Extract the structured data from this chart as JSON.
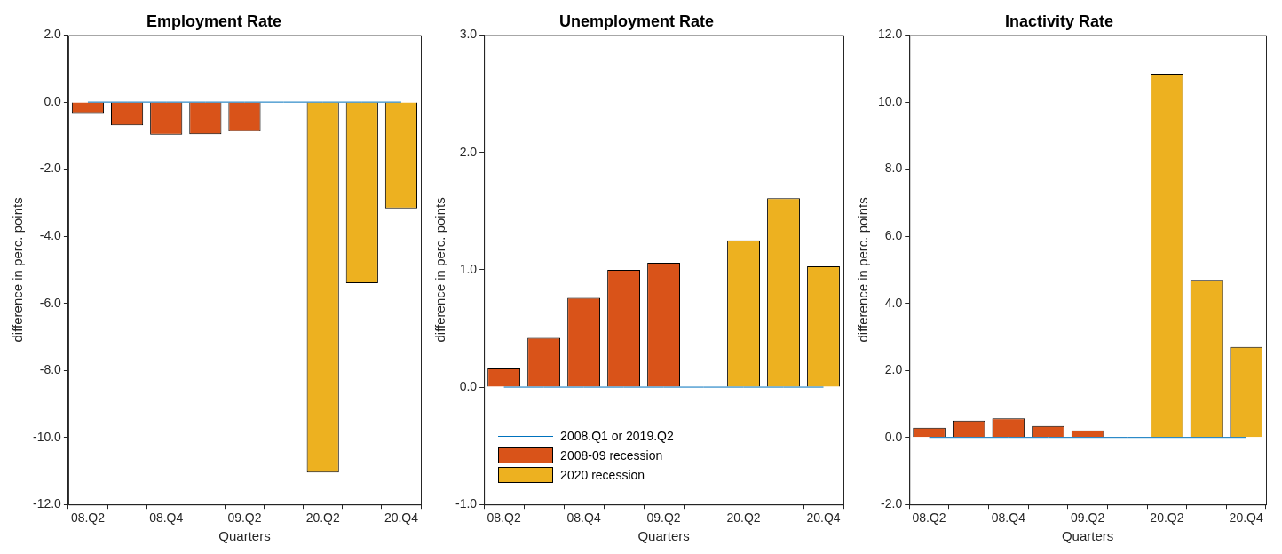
{
  "chart_data": [
    {
      "type": "bar",
      "title": "Employment Rate",
      "xlabel": "Quarters",
      "ylabel": "difference in perc. points",
      "categories": [
        "08.Q2",
        null,
        "08.Q4",
        null,
        "09.Q2",
        null,
        "20.Q2",
        null,
        "20.Q4"
      ],
      "series": [
        {
          "type": "line",
          "color": "#0072bd",
          "values": [
            0,
            0,
            0,
            0,
            0,
            0,
            0,
            0,
            0
          ]
        },
        {
          "color": "#d95319",
          "values": [
            -0.33,
            -0.69,
            -0.97,
            -0.96,
            -0.86,
            null,
            null,
            null,
            null
          ]
        },
        {
          "color": "#edb120",
          "values": [
            null,
            null,
            null,
            null,
            null,
            null,
            -11.05,
            -5.4,
            -3.17
          ]
        }
      ],
      "ylim": [
        -12,
        2
      ],
      "yticks": [
        {
          "value": -12,
          "label": "-12.0"
        },
        {
          "value": -10,
          "label": "-10.0"
        },
        {
          "value": -8,
          "label": "-8.0"
        },
        {
          "value": -6,
          "label": "-6.0"
        },
        {
          "value": -4,
          "label": "-4.0"
        },
        {
          "value": -2,
          "label": "-2.0"
        },
        {
          "value": 0,
          "label": "0.0"
        },
        {
          "value": 2,
          "label": "2.0"
        }
      ],
      "grid": false
    },
    {
      "type": "bar",
      "title": "Unemployment Rate",
      "xlabel": "Quarters",
      "ylabel": "difference in perc. points",
      "categories": [
        "08.Q2",
        null,
        "08.Q4",
        null,
        "09.Q2",
        null,
        "20.Q2",
        null,
        "20.Q4"
      ],
      "series": [
        {
          "type": "line",
          "name": "2008.Q1 or 2019.Q2",
          "color": "#0072bd",
          "values": [
            0,
            0,
            0,
            0,
            0,
            0,
            0,
            0,
            0
          ]
        },
        {
          "name": "2008-09 recession",
          "color": "#d95319",
          "values": [
            0.16,
            0.42,
            0.76,
            1.0,
            1.06,
            null,
            null,
            null,
            null
          ]
        },
        {
          "name": "2020 recession",
          "color": "#edb120",
          "values": [
            null,
            null,
            null,
            null,
            null,
            null,
            1.25,
            1.61,
            1.03
          ]
        }
      ],
      "ylim": [
        -1,
        3
      ],
      "yticks": [
        {
          "value": -1,
          "label": "-1.0"
        },
        {
          "value": 0,
          "label": "0.0"
        },
        {
          "value": 1,
          "label": "1.0"
        },
        {
          "value": 2,
          "label": "2.0"
        },
        {
          "value": 3,
          "label": "3.0"
        }
      ],
      "grid": false,
      "legend": "bottom left"
    },
    {
      "type": "bar",
      "title": "Inactivity Rate",
      "xlabel": "Quarters",
      "ylabel": "difference in perc. points",
      "categories": [
        "08.Q2",
        null,
        "08.Q4",
        null,
        "09.Q2",
        null,
        "20.Q2",
        null,
        "20.Q4"
      ],
      "series": [
        {
          "type": "line",
          "color": "#0072bd",
          "values": [
            0,
            0,
            0,
            0,
            0,
            0,
            0,
            0,
            0
          ]
        },
        {
          "color": "#d95319",
          "values": [
            0.29,
            0.5,
            0.57,
            0.34,
            0.21,
            null,
            null,
            null,
            null
          ]
        },
        {
          "color": "#edb120",
          "values": [
            null,
            null,
            null,
            null,
            null,
            null,
            10.85,
            4.7,
            2.7
          ]
        }
      ],
      "ylim": [
        -2,
        12
      ],
      "yticks": [
        {
          "value": -2,
          "label": "-2.0"
        },
        {
          "value": 0,
          "label": "0.0"
        },
        {
          "value": 2,
          "label": "2.0"
        },
        {
          "value": 4,
          "label": "4.0"
        },
        {
          "value": 6,
          "label": "6.0"
        },
        {
          "value": 8,
          "label": "8.0"
        },
        {
          "value": 10,
          "label": "10.0"
        },
        {
          "value": 12,
          "label": "12.0"
        }
      ],
      "grid": false
    }
  ]
}
